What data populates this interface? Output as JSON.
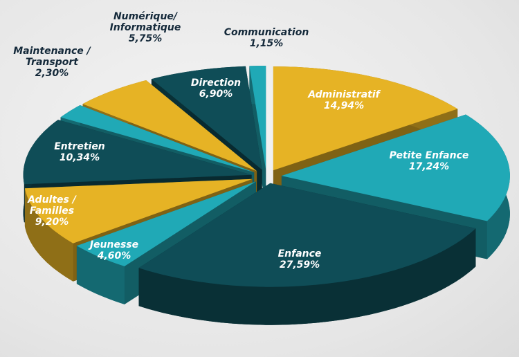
{
  "chart_data": {
    "type": "pie3d",
    "categories": [
      "Administratif",
      "Petite Enfance",
      "Enfance",
      "Jeunesse",
      "Adultes / Familles",
      "Entretien",
      "Maintenance / Transport",
      "Numérique/ Informatique",
      "Direction",
      "Communication"
    ],
    "values": [
      14.94,
      17.24,
      27.59,
      4.6,
      9.2,
      10.34,
      2.3,
      5.75,
      6.9,
      1.15
    ],
    "value_labels": [
      "14,94%",
      "17,24%",
      "27,59%",
      "4,60%",
      "9,20%",
      "10,34%",
      "2,30%",
      "5,75%",
      "6,90%",
      "1,15%"
    ],
    "colors": [
      "#e6b325",
      "#20a9b6",
      "#0f4d57",
      "#20a9b6",
      "#e6b325",
      "#0f4d57",
      "#20a9b6",
      "#e6b325",
      "#0f4d57",
      "#20a9b6"
    ]
  }
}
